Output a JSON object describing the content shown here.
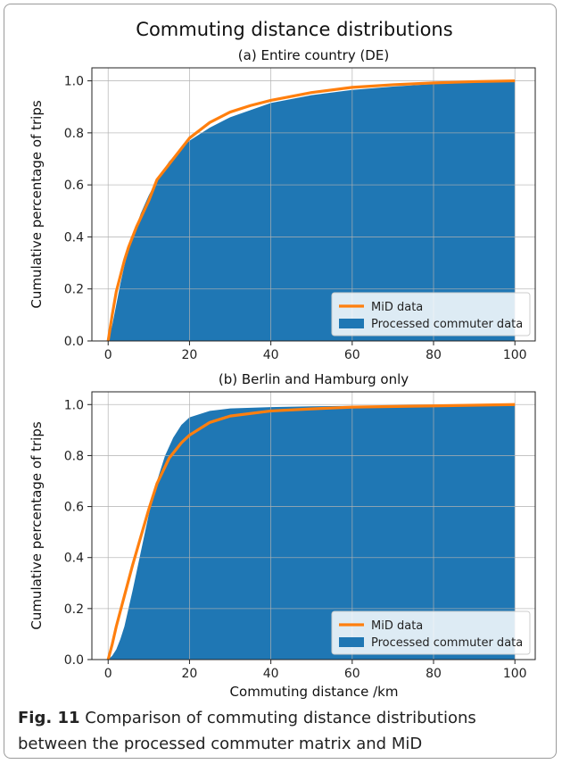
{
  "figure": {
    "title": "Commuting distance distributions",
    "xlabel": "Commuting distance /km",
    "ylabel": "Cumulative percentage of trips",
    "colors": {
      "processed": "#1f77b4",
      "mid": "#ff7f0e",
      "grid": "#b0b0b0"
    }
  },
  "caption": {
    "label": "Fig. 11",
    "text": "Comparison of commuting distance distributions between the processed commuter matrix and MiD"
  },
  "chart_data": [
    {
      "type": "area",
      "title": "(a) Entire country (DE)",
      "xlabel": "",
      "ylabel": "Cumulative percentage of trips",
      "xlim": [
        -4,
        105
      ],
      "ylim": [
        0,
        1.05
      ],
      "xticks": [
        "0",
        "20",
        "40",
        "60",
        "80",
        "100"
      ],
      "yticks": [
        "0.0",
        "0.2",
        "0.4",
        "0.6",
        "0.8",
        "1.0"
      ],
      "grid": true,
      "legend_position": "bottom-right",
      "legend": [
        "MiD data",
        "Processed commuter data"
      ],
      "series": [
        {
          "name": "Processed commuter data",
          "type": "area",
          "x": [
            0,
            1,
            2,
            3,
            4,
            5,
            6,
            8,
            10,
            12,
            15,
            20,
            25,
            30,
            40,
            50,
            60,
            70,
            80,
            90,
            100
          ],
          "y": [
            0,
            0.06,
            0.14,
            0.22,
            0.29,
            0.35,
            0.4,
            0.49,
            0.56,
            0.62,
            0.69,
            0.77,
            0.82,
            0.86,
            0.915,
            0.945,
            0.965,
            0.978,
            0.988,
            0.995,
            1.0
          ]
        },
        {
          "name": "MiD data",
          "type": "line",
          "x": [
            0,
            1,
            2,
            3,
            4,
            5,
            7,
            10,
            12,
            15,
            18,
            20,
            25,
            30,
            35,
            40,
            50,
            60,
            70,
            80,
            90,
            100
          ],
          "y": [
            0,
            0.1,
            0.19,
            0.25,
            0.31,
            0.36,
            0.44,
            0.54,
            0.62,
            0.68,
            0.74,
            0.78,
            0.84,
            0.88,
            0.905,
            0.925,
            0.955,
            0.975,
            0.985,
            0.992,
            0.997,
            1.0
          ]
        }
      ]
    },
    {
      "type": "area",
      "title": "(b) Berlin and Hamburg only",
      "xlabel": "Commuting distance /km",
      "ylabel": "Cumulative percentage of trips",
      "xlim": [
        -4,
        105
      ],
      "ylim": [
        0,
        1.05
      ],
      "xticks": [
        "0",
        "20",
        "40",
        "60",
        "80",
        "100"
      ],
      "yticks": [
        "0.0",
        "0.2",
        "0.4",
        "0.6",
        "0.8",
        "1.0"
      ],
      "grid": true,
      "legend_position": "bottom-right",
      "legend": [
        "MiD data",
        "Processed commuter data"
      ],
      "series": [
        {
          "name": "Processed commuter data",
          "type": "area",
          "x": [
            0,
            1,
            2,
            3,
            4,
            5,
            6,
            8,
            10,
            12,
            14,
            16,
            18,
            20,
            25,
            30,
            40,
            50,
            60,
            80,
            100
          ],
          "y": [
            0,
            0.015,
            0.04,
            0.08,
            0.13,
            0.2,
            0.27,
            0.42,
            0.57,
            0.7,
            0.8,
            0.87,
            0.92,
            0.95,
            0.975,
            0.985,
            0.99,
            0.993,
            0.995,
            0.998,
            1.0
          ]
        },
        {
          "name": "MiD data",
          "type": "line",
          "x": [
            0,
            1,
            2,
            3,
            4,
            5,
            6,
            8,
            10,
            12,
            15,
            18,
            20,
            25,
            30,
            40,
            50,
            60,
            80,
            100
          ],
          "y": [
            0,
            0.06,
            0.13,
            0.19,
            0.25,
            0.31,
            0.37,
            0.48,
            0.59,
            0.69,
            0.79,
            0.85,
            0.88,
            0.93,
            0.955,
            0.975,
            0.983,
            0.99,
            0.995,
            1.0
          ]
        }
      ]
    }
  ]
}
